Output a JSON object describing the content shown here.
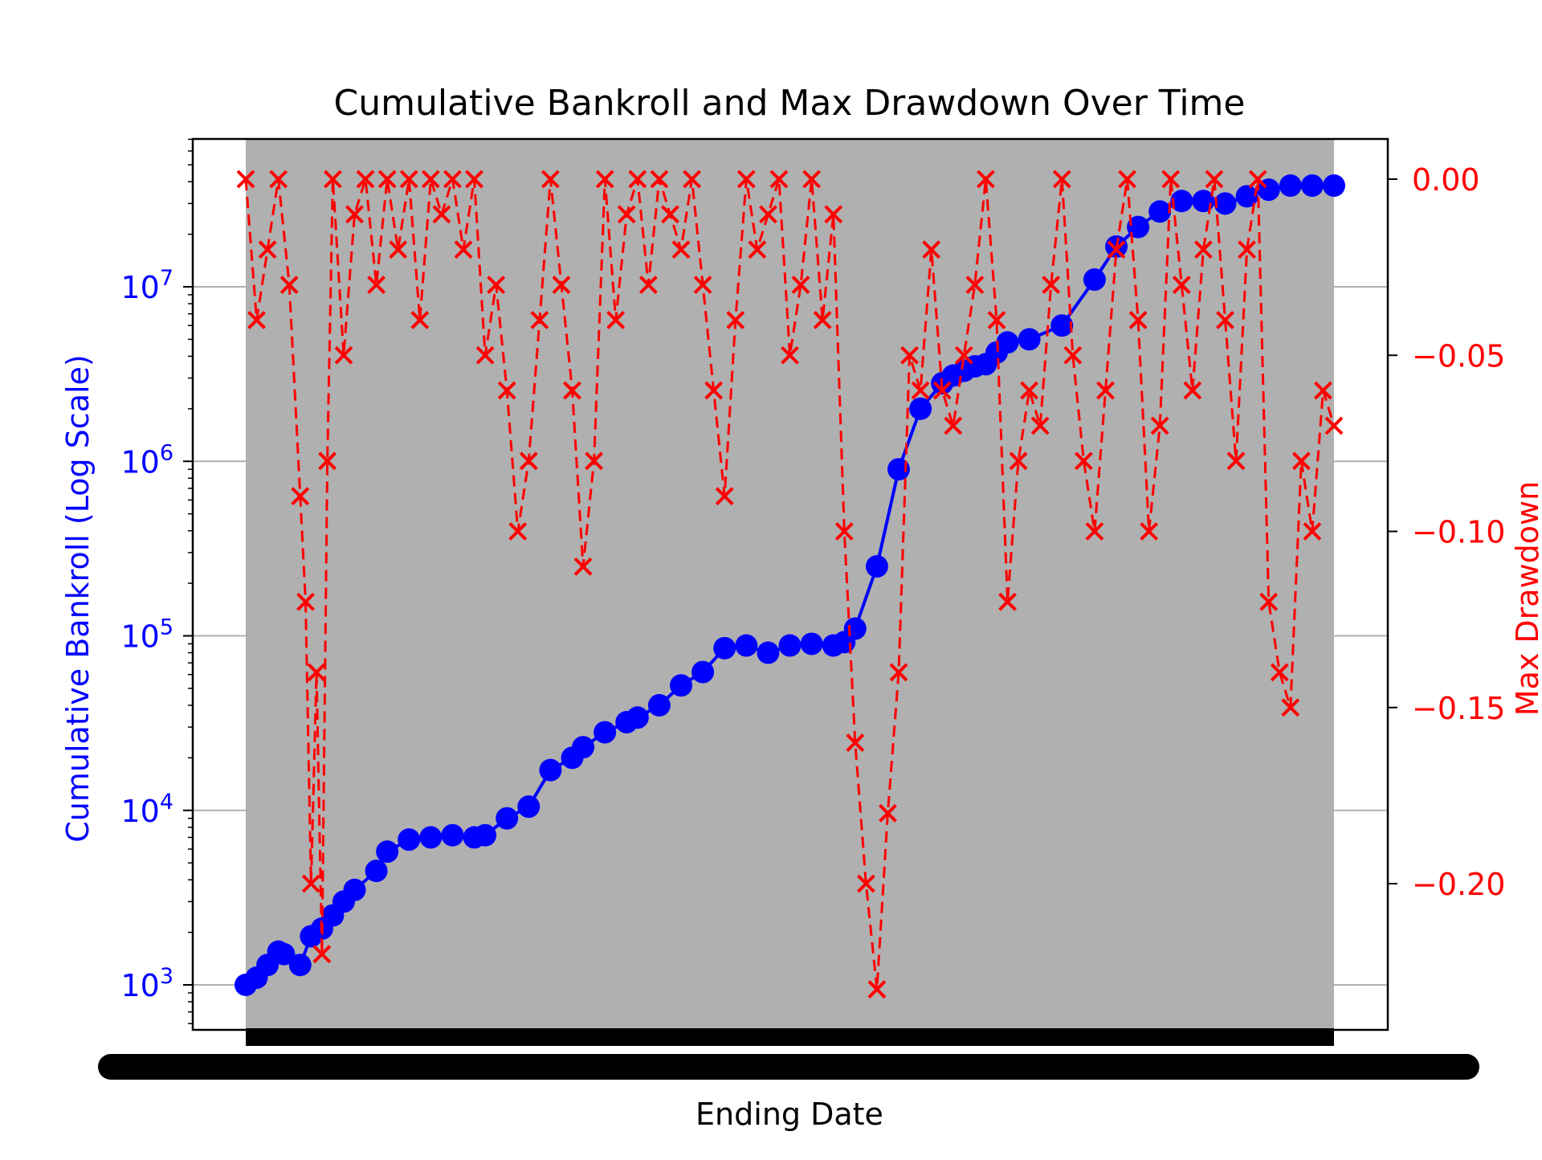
{
  "chart_data": {
    "type": "line",
    "title": "Cumulative Bankroll and Max Drawdown Over Time",
    "xlabel": "Ending Date",
    "y_left": {
      "label": "Cumulative Bankroll (Log Scale)",
      "scale": "log",
      "ticks": [
        1000,
        10000,
        100000,
        1000000,
        10000000
      ],
      "tick_labels": [
        {
          "base": "10",
          "exp": "3"
        },
        {
          "base": "10",
          "exp": "4"
        },
        {
          "base": "10",
          "exp": "5"
        },
        {
          "base": "10",
          "exp": "6"
        },
        {
          "base": "10",
          "exp": "7"
        }
      ],
      "color": "#0000ff"
    },
    "y_right": {
      "label": "Max Drawdown",
      "ticks": [
        0.0,
        -0.05,
        -0.1,
        -0.15,
        -0.2
      ],
      "tick_labels": [
        "0.00",
        "−0.05",
        "−0.10",
        "−0.15",
        "−0.20"
      ],
      "color": "#ff0000"
    },
    "x_tick_labels_overlapping": true,
    "grid": true,
    "background_color": "#b0b0b0",
    "series": [
      {
        "name": "",
        "axis": "left",
        "color": "#0000ff",
        "marker": "o",
        "x_fraction": [
          0.0,
          0.01,
          0.02,
          0.03,
          0.035,
          0.05,
          0.06,
          0.07,
          0.08,
          0.09,
          0.1,
          0.12,
          0.13,
          0.15,
          0.17,
          0.19,
          0.21,
          0.22,
          0.24,
          0.26,
          0.28,
          0.3,
          0.31,
          0.33,
          0.35,
          0.36,
          0.38,
          0.4,
          0.42,
          0.44,
          0.46,
          0.48,
          0.5,
          0.52,
          0.54,
          0.55,
          0.56,
          0.58,
          0.6,
          0.62,
          0.64,
          0.65,
          0.66,
          0.67,
          0.68,
          0.69,
          0.7,
          0.72,
          0.75,
          0.78,
          0.8,
          0.82,
          0.84,
          0.86,
          0.88,
          0.9,
          0.92,
          0.94,
          0.96,
          0.98,
          1.0
        ],
        "values": [
          1000,
          1100,
          1300,
          1550,
          1500,
          1300,
          1900,
          2100,
          2500,
          3000,
          3500,
          4500,
          5800,
          6800,
          7000,
          7200,
          7000,
          7200,
          9000,
          10500,
          17000,
          20000,
          23000,
          28000,
          32000,
          34000,
          40000,
          52000,
          62000,
          85000,
          88000,
          80000,
          88000,
          90000,
          88000,
          92000,
          110000,
          250000,
          900000,
          2000000,
          2800000,
          3100000,
          3300000,
          3500000,
          3600000,
          4200000,
          4800000,
          5000000,
          6000000,
          11000000,
          17000000,
          22000000,
          27000000,
          31000000,
          31000000,
          30000000,
          33000000,
          36000000,
          38000000,
          38000000,
          38000000
        ]
      },
      {
        "name": "",
        "axis": "right",
        "color": "#ff0000",
        "marker": "x",
        "linestyle": "dashed",
        "x_fraction": [
          0.0,
          0.01,
          0.02,
          0.03,
          0.04,
          0.05,
          0.055,
          0.06,
          0.065,
          0.07,
          0.075,
          0.08,
          0.09,
          0.1,
          0.11,
          0.12,
          0.13,
          0.14,
          0.15,
          0.16,
          0.17,
          0.18,
          0.19,
          0.2,
          0.21,
          0.22,
          0.23,
          0.24,
          0.25,
          0.26,
          0.27,
          0.28,
          0.29,
          0.3,
          0.31,
          0.32,
          0.33,
          0.34,
          0.35,
          0.36,
          0.37,
          0.38,
          0.39,
          0.4,
          0.41,
          0.42,
          0.43,
          0.44,
          0.45,
          0.46,
          0.47,
          0.48,
          0.49,
          0.5,
          0.51,
          0.52,
          0.53,
          0.54,
          0.55,
          0.56,
          0.57,
          0.58,
          0.59,
          0.6,
          0.61,
          0.62,
          0.63,
          0.64,
          0.65,
          0.66,
          0.67,
          0.68,
          0.69,
          0.7,
          0.71,
          0.72,
          0.73,
          0.74,
          0.75,
          0.76,
          0.77,
          0.78,
          0.79,
          0.8,
          0.81,
          0.82,
          0.83,
          0.84,
          0.85,
          0.86,
          0.87,
          0.88,
          0.89,
          0.9,
          0.91,
          0.92,
          0.93,
          0.94,
          0.95,
          0.96,
          0.97,
          0.98,
          0.99,
          1.0
        ],
        "values": [
          0.0,
          -0.04,
          -0.02,
          0.0,
          -0.03,
          -0.09,
          -0.12,
          -0.2,
          -0.14,
          -0.22,
          -0.08,
          0.0,
          -0.05,
          -0.01,
          0.0,
          -0.03,
          0.0,
          -0.02,
          0.0,
          -0.04,
          0.0,
          -0.01,
          0.0,
          -0.02,
          0.0,
          -0.05,
          -0.03,
          -0.06,
          -0.1,
          -0.08,
          -0.04,
          0.0,
          -0.03,
          -0.06,
          -0.11,
          -0.08,
          0.0,
          -0.04,
          -0.01,
          0.0,
          -0.03,
          0.0,
          -0.01,
          -0.02,
          0.0,
          -0.03,
          -0.06,
          -0.09,
          -0.04,
          0.0,
          -0.02,
          -0.01,
          0.0,
          -0.05,
          -0.03,
          0.0,
          -0.04,
          -0.01,
          -0.1,
          -0.16,
          -0.2,
          -0.23,
          -0.18,
          -0.14,
          -0.05,
          -0.06,
          -0.02,
          -0.06,
          -0.07,
          -0.05,
          -0.03,
          0.0,
          -0.04,
          -0.12,
          -0.08,
          -0.06,
          -0.07,
          -0.03,
          0.0,
          -0.05,
          -0.08,
          -0.1,
          -0.06,
          -0.02,
          0.0,
          -0.04,
          -0.1,
          -0.07,
          0.0,
          -0.03,
          -0.06,
          -0.02,
          0.0,
          -0.04,
          -0.08,
          -0.02,
          0.0,
          -0.12,
          -0.14,
          -0.15,
          -0.08,
          -0.1,
          -0.06,
          -0.07
        ]
      }
    ]
  }
}
